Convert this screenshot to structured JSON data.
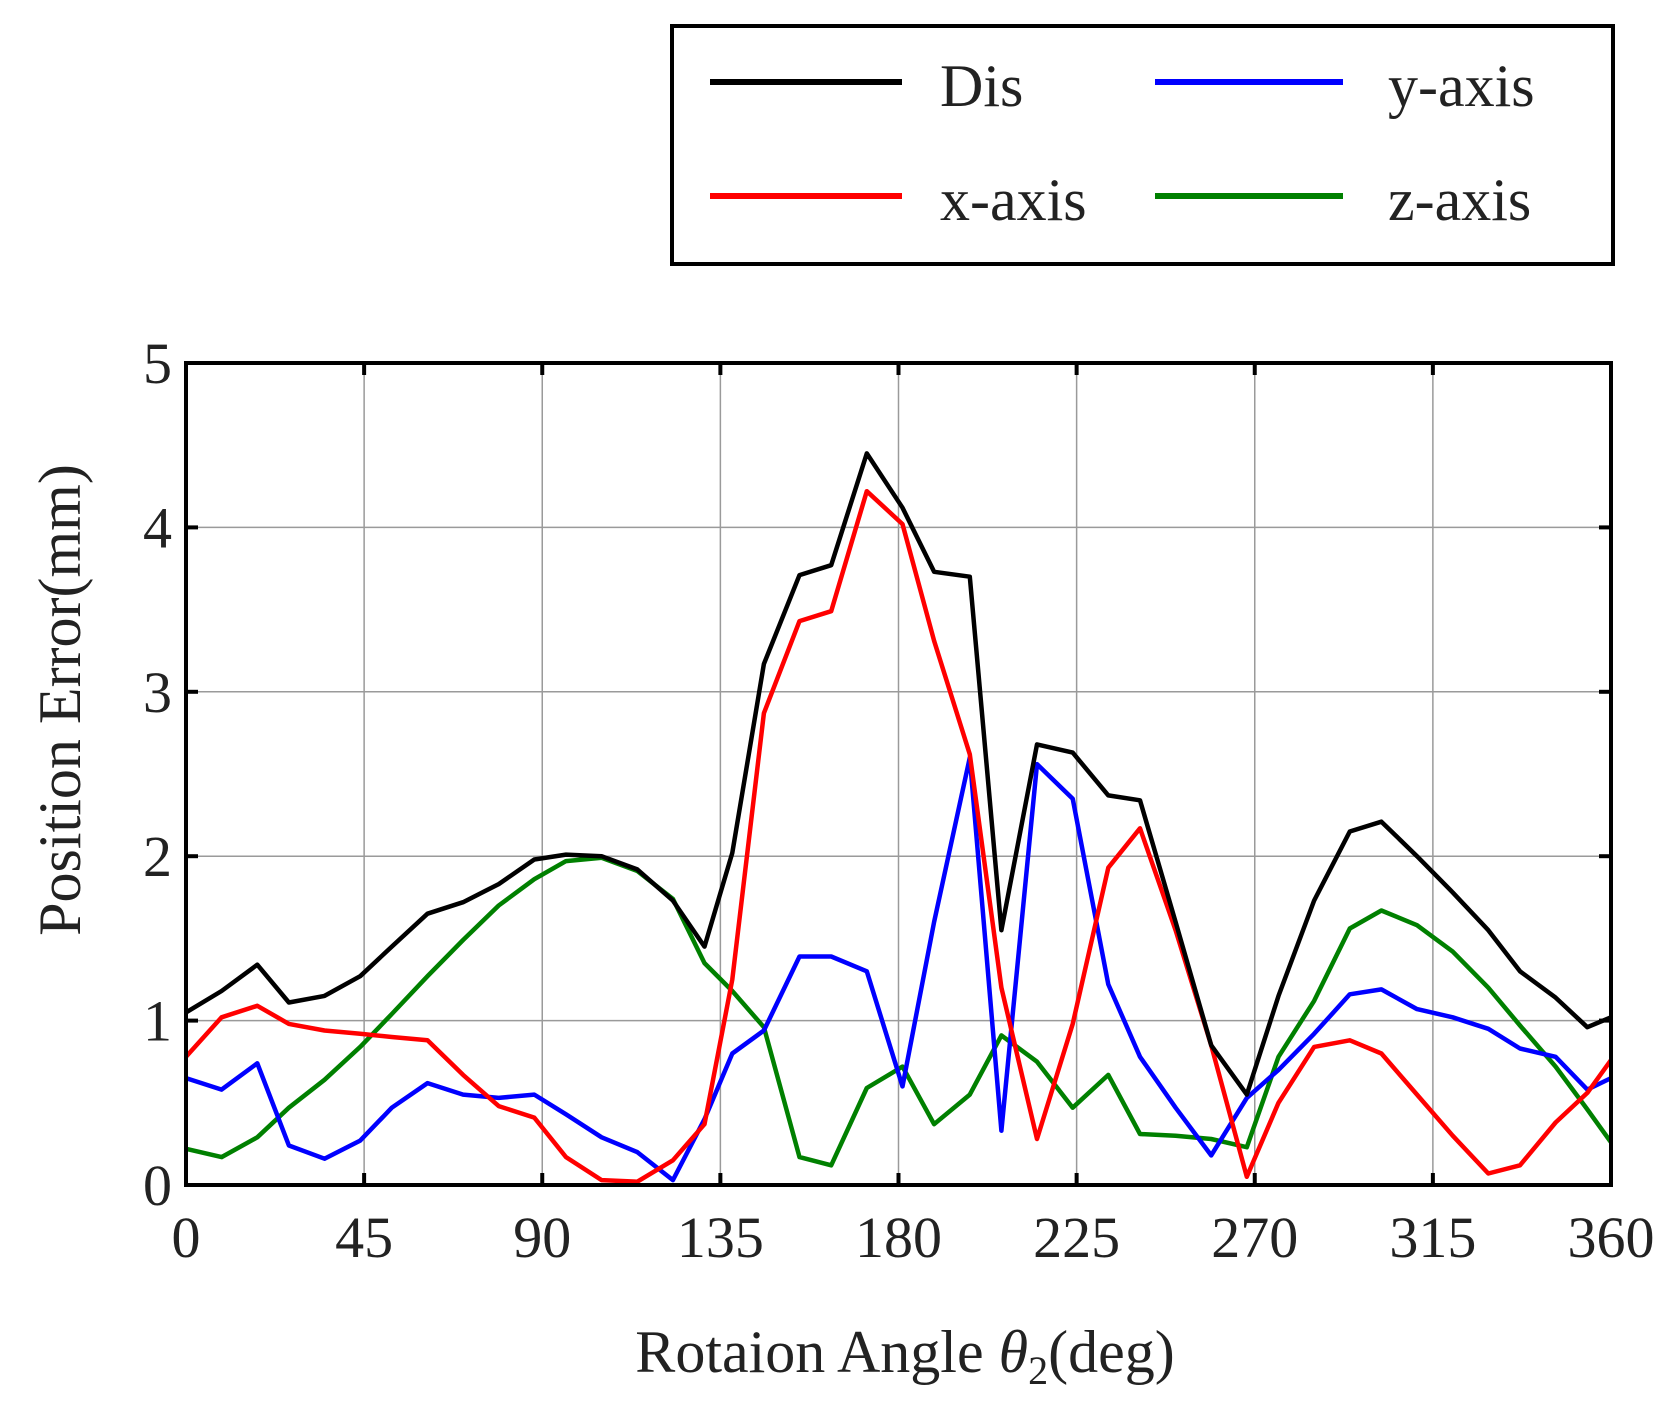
{
  "chart_data": {
    "type": "line",
    "title": "",
    "xlabel_main": "Rotaion Angle ",
    "xlabel_symbol": "θ",
    "xlabel_subscript": "2",
    "xlabel_unit": "(deg)",
    "ylabel": "Position Error(mm)",
    "xlim": [
      0,
      360
    ],
    "ylim": [
      0,
      5
    ],
    "x_ticks": [
      0,
      45,
      90,
      135,
      180,
      225,
      270,
      315,
      360
    ],
    "y_ticks": [
      0,
      1,
      2,
      3,
      4,
      5
    ],
    "grid": true,
    "legend_position": "top-right",
    "series": [
      {
        "name": "Dis",
        "color": "#000000",
        "points": [
          [
            0,
            1.05
          ],
          [
            9,
            1.18
          ],
          [
            18,
            1.34
          ],
          [
            26,
            1.11
          ],
          [
            35,
            1.15
          ],
          [
            44,
            1.27
          ],
          [
            52,
            1.45
          ],
          [
            61,
            1.65
          ],
          [
            70,
            1.72
          ],
          [
            79,
            1.83
          ],
          [
            88,
            1.98
          ],
          [
            96,
            2.01
          ],
          [
            105,
            2.0
          ],
          [
            114,
            1.92
          ],
          [
            123,
            1.73
          ],
          [
            131,
            1.45
          ],
          [
            138,
            2.02
          ],
          [
            146,
            3.17
          ],
          [
            155,
            3.71
          ],
          [
            163,
            3.77
          ],
          [
            172,
            4.45
          ],
          [
            181,
            4.12
          ],
          [
            189,
            3.73
          ],
          [
            198,
            3.7
          ],
          [
            206,
            1.55
          ],
          [
            215,
            2.68
          ],
          [
            224,
            2.63
          ],
          [
            233,
            2.37
          ],
          [
            241,
            2.34
          ],
          [
            250,
            1.6
          ],
          [
            259,
            0.85
          ],
          [
            268,
            0.55
          ],
          [
            276,
            1.15
          ],
          [
            285,
            1.73
          ],
          [
            294,
            2.15
          ],
          [
            302,
            2.21
          ],
          [
            311,
            2.0
          ],
          [
            320,
            1.78
          ],
          [
            329,
            1.55
          ],
          [
            337,
            1.3
          ],
          [
            346,
            1.14
          ],
          [
            354,
            0.96
          ],
          [
            360,
            1.02
          ]
        ]
      },
      {
        "name": "x-axis",
        "color": "#ff0000",
        "points": [
          [
            0,
            0.78
          ],
          [
            9,
            1.02
          ],
          [
            18,
            1.09
          ],
          [
            26,
            0.98
          ],
          [
            35,
            0.94
          ],
          [
            44,
            0.92
          ],
          [
            52,
            0.9
          ],
          [
            61,
            0.88
          ],
          [
            70,
            0.67
          ],
          [
            79,
            0.48
          ],
          [
            88,
            0.41
          ],
          [
            96,
            0.17
          ],
          [
            105,
            0.03
          ],
          [
            114,
            0.02
          ],
          [
            123,
            0.15
          ],
          [
            131,
            0.37
          ],
          [
            138,
            1.25
          ],
          [
            146,
            2.87
          ],
          [
            155,
            3.43
          ],
          [
            163,
            3.49
          ],
          [
            172,
            4.22
          ],
          [
            181,
            4.02
          ],
          [
            189,
            3.31
          ],
          [
            198,
            2.62
          ],
          [
            206,
            1.2
          ],
          [
            215,
            0.28
          ],
          [
            224,
            0.98
          ],
          [
            233,
            1.93
          ],
          [
            241,
            2.17
          ],
          [
            250,
            1.55
          ],
          [
            259,
            0.85
          ],
          [
            268,
            0.05
          ],
          [
            276,
            0.5
          ],
          [
            285,
            0.84
          ],
          [
            294,
            0.88
          ],
          [
            302,
            0.8
          ],
          [
            311,
            0.55
          ],
          [
            320,
            0.3
          ],
          [
            329,
            0.07
          ],
          [
            337,
            0.12
          ],
          [
            346,
            0.38
          ],
          [
            354,
            0.56
          ],
          [
            360,
            0.76
          ]
        ]
      },
      {
        "name": "y-axis",
        "color": "#0000ff",
        "points": [
          [
            0,
            0.65
          ],
          [
            9,
            0.58
          ],
          [
            18,
            0.74
          ],
          [
            26,
            0.24
          ],
          [
            35,
            0.16
          ],
          [
            44,
            0.27
          ],
          [
            52,
            0.47
          ],
          [
            61,
            0.62
          ],
          [
            70,
            0.55
          ],
          [
            79,
            0.53
          ],
          [
            88,
            0.55
          ],
          [
            96,
            0.43
          ],
          [
            105,
            0.29
          ],
          [
            114,
            0.2
          ],
          [
            123,
            0.03
          ],
          [
            131,
            0.4
          ],
          [
            138,
            0.8
          ],
          [
            146,
            0.94
          ],
          [
            155,
            1.39
          ],
          [
            163,
            1.39
          ],
          [
            172,
            1.3
          ],
          [
            181,
            0.6
          ],
          [
            189,
            1.6
          ],
          [
            198,
            2.6
          ],
          [
            206,
            0.33
          ],
          [
            215,
            2.56
          ],
          [
            224,
            2.35
          ],
          [
            233,
            1.22
          ],
          [
            241,
            0.78
          ],
          [
            250,
            0.47
          ],
          [
            259,
            0.18
          ],
          [
            268,
            0.53
          ],
          [
            276,
            0.7
          ],
          [
            285,
            0.92
          ],
          [
            294,
            1.16
          ],
          [
            302,
            1.19
          ],
          [
            311,
            1.07
          ],
          [
            320,
            1.02
          ],
          [
            329,
            0.95
          ],
          [
            337,
            0.83
          ],
          [
            346,
            0.78
          ],
          [
            354,
            0.58
          ],
          [
            360,
            0.65
          ]
        ]
      },
      {
        "name": "z-axis",
        "color": "#008000",
        "points": [
          [
            0,
            0.22
          ],
          [
            9,
            0.17
          ],
          [
            18,
            0.29
          ],
          [
            26,
            0.47
          ],
          [
            35,
            0.64
          ],
          [
            44,
            0.84
          ],
          [
            52,
            1.04
          ],
          [
            61,
            1.27
          ],
          [
            70,
            1.49
          ],
          [
            79,
            1.7
          ],
          [
            88,
            1.86
          ],
          [
            96,
            1.97
          ],
          [
            105,
            1.99
          ],
          [
            114,
            1.91
          ],
          [
            123,
            1.74
          ],
          [
            131,
            1.35
          ],
          [
            138,
            1.18
          ],
          [
            146,
            0.96
          ],
          [
            155,
            0.17
          ],
          [
            163,
            0.12
          ],
          [
            172,
            0.59
          ],
          [
            181,
            0.72
          ],
          [
            189,
            0.37
          ],
          [
            198,
            0.55
          ],
          [
            206,
            0.91
          ],
          [
            215,
            0.75
          ],
          [
            224,
            0.47
          ],
          [
            233,
            0.67
          ],
          [
            241,
            0.31
          ],
          [
            250,
            0.3
          ],
          [
            259,
            0.28
          ],
          [
            268,
            0.23
          ],
          [
            276,
            0.78
          ],
          [
            285,
            1.12
          ],
          [
            294,
            1.56
          ],
          [
            302,
            1.67
          ],
          [
            311,
            1.58
          ],
          [
            320,
            1.42
          ],
          [
            329,
            1.2
          ],
          [
            337,
            0.97
          ],
          [
            346,
            0.72
          ],
          [
            354,
            0.46
          ],
          [
            360,
            0.26
          ]
        ]
      }
    ]
  }
}
